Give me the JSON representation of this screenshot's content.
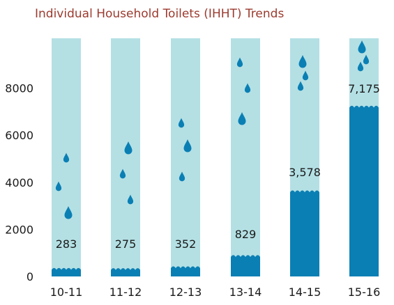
{
  "chart_data": {
    "type": "bar",
    "title": "Individual Household Toilets (IHHT)  Trends",
    "xlabel": "",
    "ylabel": "",
    "categories": [
      "10-11",
      "11-12",
      "12-13",
      "13-14",
      "14-15",
      "15-16"
    ],
    "values": [
      283,
      275,
      352,
      829,
      3578,
      7175
    ],
    "value_labels": [
      "283",
      "275",
      "352",
      "829",
      "3,578",
      "7,175"
    ],
    "yticks": [
      "0",
      "2000",
      "4000",
      "6000",
      "8000"
    ],
    "ytick_values": [
      0,
      2000,
      4000,
      6000,
      8000
    ],
    "ylim": [
      0,
      10000
    ],
    "grid": false,
    "legend": "none",
    "colors": {
      "title": "#9b3a2e",
      "column_background": "#b4e0e4",
      "fill": "#0a7fb4",
      "drops": "#0a7fb4",
      "text": "#1a1a1a"
    },
    "icons": [
      "water-drop-icon"
    ]
  }
}
